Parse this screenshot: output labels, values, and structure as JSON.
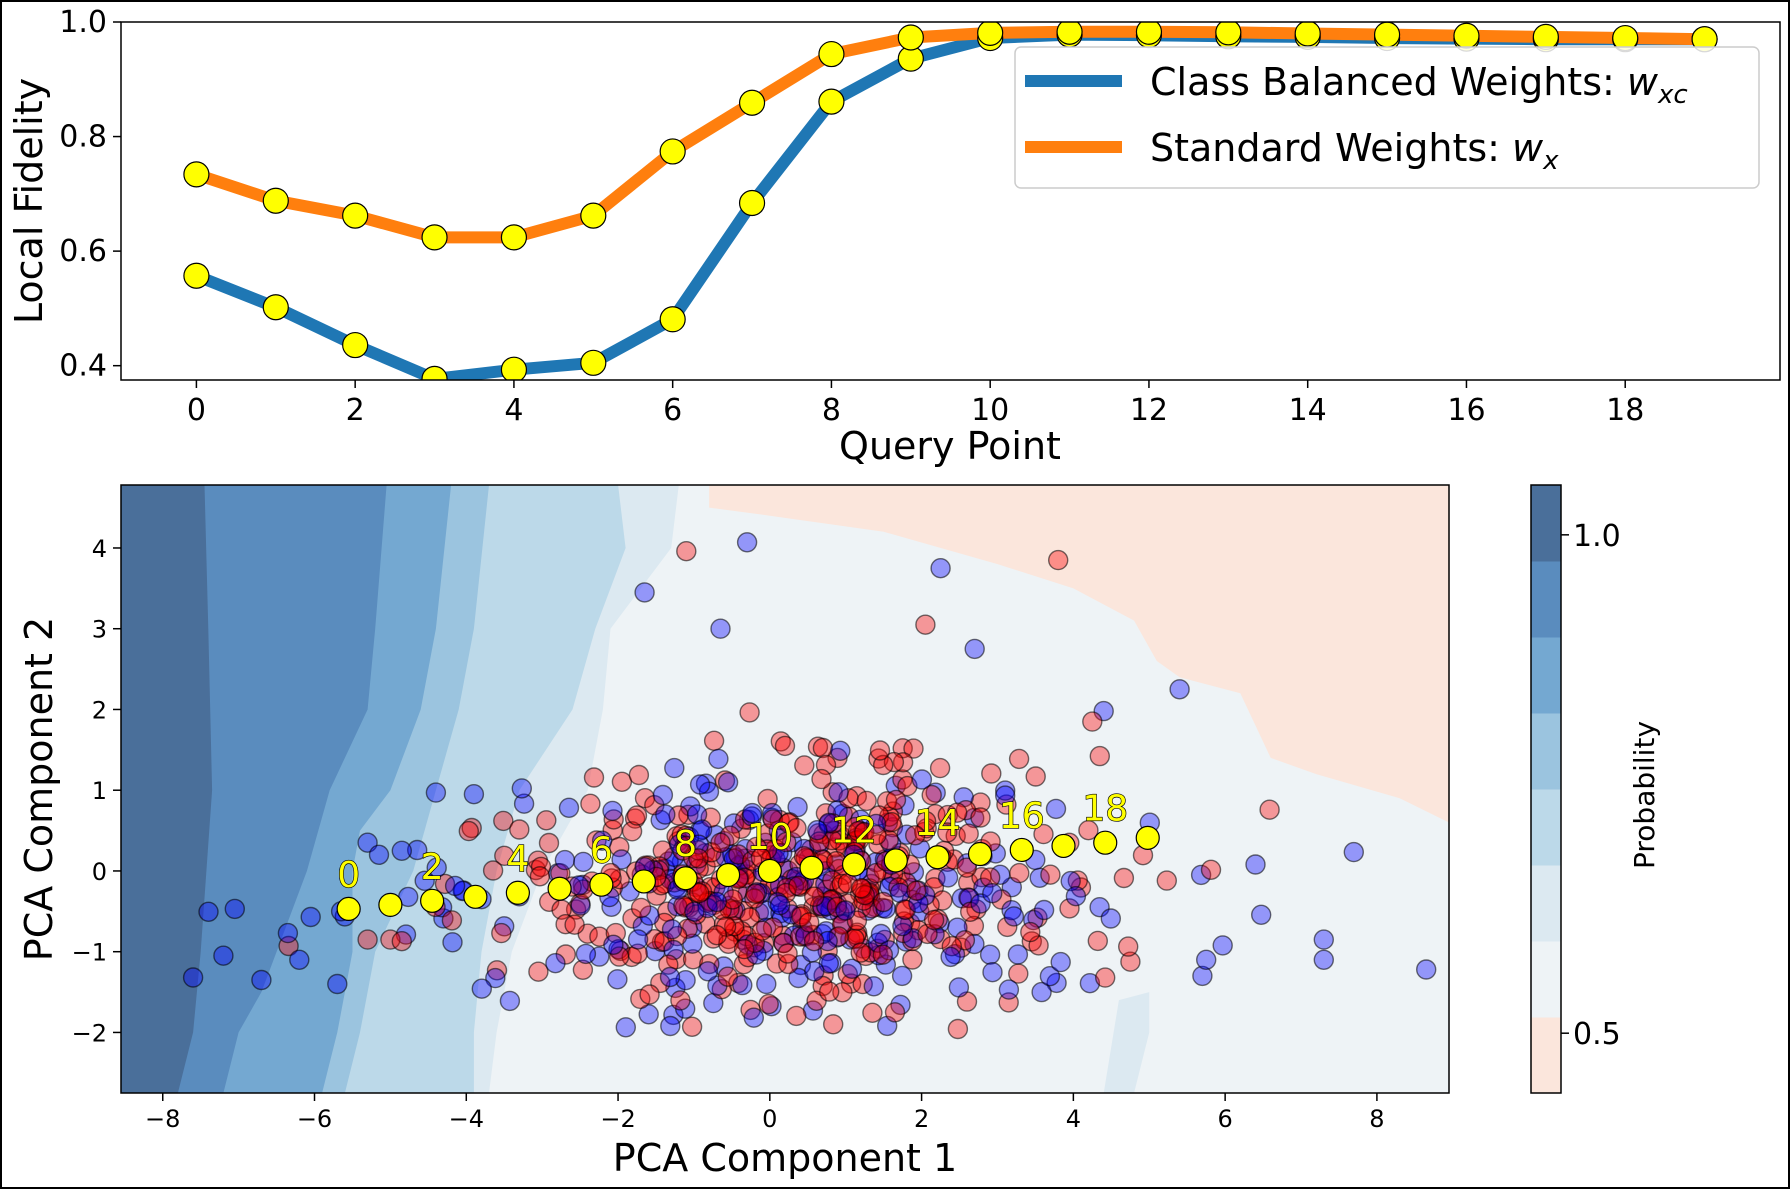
{
  "chart_data": [
    {
      "type": "line",
      "xlabel": "Query Point",
      "ylabel": "Local Fidelity",
      "xlim": [
        -0.95,
        19.95
      ],
      "ylim": [
        0.375,
        1.0
      ],
      "xticks": [
        0,
        2,
        4,
        6,
        8,
        10,
        12,
        14,
        16,
        18
      ],
      "yticks": [
        0.4,
        0.6,
        0.8,
        1.0
      ],
      "ytick_labels": [
        "0.4",
        "0.6",
        "0.8",
        "1.0"
      ],
      "legend_placement": "upper-right",
      "marker_color": "#ffff00",
      "x": [
        0,
        1,
        2,
        3,
        4,
        5,
        6,
        7,
        8,
        9,
        10,
        11,
        12,
        13,
        14,
        15,
        16,
        17,
        18,
        19
      ],
      "series": [
        {
          "name": "Class Balanced Weights: ",
          "name_math": "w",
          "name_sub": "xc",
          "color": "#1f77b4",
          "values": [
            0.557,
            0.502,
            0.436,
            0.377,
            0.393,
            0.405,
            0.481,
            0.684,
            0.861,
            0.936,
            0.972,
            0.978,
            0.977,
            0.975,
            0.974,
            0.972,
            0.971,
            0.97,
            0.97,
            0.97
          ]
        },
        {
          "name": "Standard Weights: ",
          "name_math": "w",
          "name_sub": "x",
          "color": "#ff7f0e",
          "values": [
            0.734,
            0.688,
            0.662,
            0.624,
            0.624,
            0.662,
            0.774,
            0.859,
            0.944,
            0.973,
            0.981,
            0.983,
            0.983,
            0.982,
            0.98,
            0.978,
            0.976,
            0.974,
            0.972,
            0.97
          ]
        }
      ]
    },
    {
      "type": "scatter",
      "xlabel": "PCA Component 1",
      "ylabel": "PCA Component 2",
      "xlim": [
        -8.55,
        8.95
      ],
      "ylim": [
        -2.75,
        4.78
      ],
      "xticks": [
        -8,
        -6,
        -4,
        -2,
        0,
        2,
        4,
        6,
        8
      ],
      "xtick_labels": [
        "−8",
        "−6",
        "−4",
        "−2",
        "0",
        "2",
        "4",
        "6",
        "8"
      ],
      "yticks": [
        -2,
        -1,
        0,
        1,
        2,
        3,
        4
      ],
      "ytick_labels": [
        "−2",
        "−1",
        "0",
        "1",
        "2",
        "3",
        "4"
      ],
      "class_colors": {
        "class_0": "#0000ff",
        "class_1": "#ff0000"
      },
      "contour_colors": [
        "#fbe6dc",
        "#eef3f6",
        "#dce9f1",
        "#bcd9e9",
        "#9bc4df",
        "#74a8d1",
        "#5a8cbe",
        "#4a6f9a"
      ],
      "contour_regions": [
        {
          "level": 7,
          "bounds": [
            [
              4.78,
              -7.45
            ],
            [
              3.0,
              -7.4
            ],
            [
              1.0,
              -7.35
            ],
            [
              -1.0,
              -7.5
            ],
            [
              -2.0,
              -7.6
            ],
            [
              -2.75,
              -7.8
            ]
          ]
        },
        {
          "level": 6,
          "bounds": [
            [
              4.78,
              -5.05
            ],
            [
              3.0,
              -5.2
            ],
            [
              2.0,
              -5.3
            ],
            [
              1.0,
              -5.8
            ],
            [
              0.0,
              -6.1
            ],
            [
              -1.0,
              -6.5
            ],
            [
              -1.5,
              -6.7
            ],
            [
              -2.0,
              -7.0
            ],
            [
              -2.75,
              -7.2
            ]
          ]
        },
        {
          "level": 5,
          "bounds": [
            [
              4.78,
              -4.2
            ],
            [
              3.0,
              -4.4
            ],
            [
              2.0,
              -4.6
            ],
            [
              1.0,
              -5.0
            ],
            [
              0.5,
              -5.4
            ],
            [
              0.0,
              -5.5
            ],
            [
              -1.0,
              -5.5
            ],
            [
              -2.0,
              -5.7
            ],
            [
              -2.75,
              -5.9
            ]
          ]
        },
        {
          "level": 4,
          "bounds": [
            [
              4.78,
              -3.7
            ],
            [
              3.0,
              -3.9
            ],
            [
              2.0,
              -4.1
            ],
            [
              1.0,
              -4.4
            ],
            [
              0.0,
              -4.7
            ],
            [
              -1.0,
              -5.2
            ],
            [
              -2.0,
              -5.4
            ],
            [
              -2.75,
              -5.6
            ]
          ]
        },
        {
          "level": 3,
          "bounds": [
            [
              4.78,
              -2.0
            ],
            [
              4.0,
              -1.9
            ],
            [
              3.0,
              -2.3
            ],
            [
              2.0,
              -2.6
            ],
            [
              1.0,
              -3.3
            ],
            [
              0.0,
              -3.6
            ],
            [
              -1.0,
              -3.8
            ],
            [
              -2.0,
              -3.9
            ],
            [
              -2.75,
              -3.9
            ]
          ]
        },
        {
          "level": 2,
          "bounds": [
            [
              4.78,
              -1.2
            ],
            [
              4.0,
              -1.3
            ],
            [
              3.0,
              -2.1
            ],
            [
              2.0,
              -2.2
            ],
            [
              1.0,
              -2.4
            ],
            [
              0.0,
              -3.0
            ],
            [
              -1.0,
              -3.4
            ],
            [
              -2.0,
              -3.6
            ],
            [
              -2.75,
              -3.7
            ]
          ]
        }
      ],
      "contour_peach": [
        [
          -8.55,
          4.78
        ],
        [
          8.95,
          4.78
        ],
        [
          8.95,
          0.6
        ],
        [
          8.3,
          0.9
        ],
        [
          7.2,
          1.2
        ],
        [
          6.6,
          1.4
        ],
        [
          6.2,
          2.2
        ],
        [
          5.4,
          2.4
        ],
        [
          5.1,
          2.6
        ],
        [
          4.8,
          3.1
        ],
        [
          4.0,
          3.5
        ],
        [
          3.0,
          3.8
        ],
        [
          1.5,
          4.2
        ],
        [
          0.0,
          4.4
        ],
        [
          -0.8,
          4.5
        ],
        [
          -0.8,
          4.78
        ]
      ],
      "peach_start_x": -0.8,
      "query_points": {
        "color": "#ffff00",
        "x": [
          -5.55,
          -5.0,
          -4.45,
          -3.88,
          -3.32,
          -2.77,
          -2.22,
          -1.66,
          -1.11,
          -0.55,
          0.0,
          0.55,
          1.11,
          1.66,
          2.21,
          2.77,
          3.32,
          3.87,
          4.42,
          4.98
        ],
        "y": [
          -0.47,
          -0.42,
          -0.37,
          -0.32,
          -0.27,
          -0.22,
          -0.17,
          -0.13,
          -0.09,
          -0.05,
          0.0,
          0.04,
          0.08,
          0.13,
          0.17,
          0.21,
          0.26,
          0.31,
          0.35,
          0.41
        ],
        "labels": [
          "0",
          "",
          "2",
          "",
          "4",
          "",
          "6",
          "",
          "8",
          "",
          "10",
          "",
          "12",
          "",
          "14",
          "",
          "16",
          "",
          "18",
          ""
        ]
      },
      "colorbar": {
        "label": "Probability",
        "ticks": [
          0.5,
          1.0
        ],
        "tick_labels": [
          "0.5",
          "1.0"
        ],
        "range": [
          0.44,
          1.05
        ]
      }
    }
  ]
}
